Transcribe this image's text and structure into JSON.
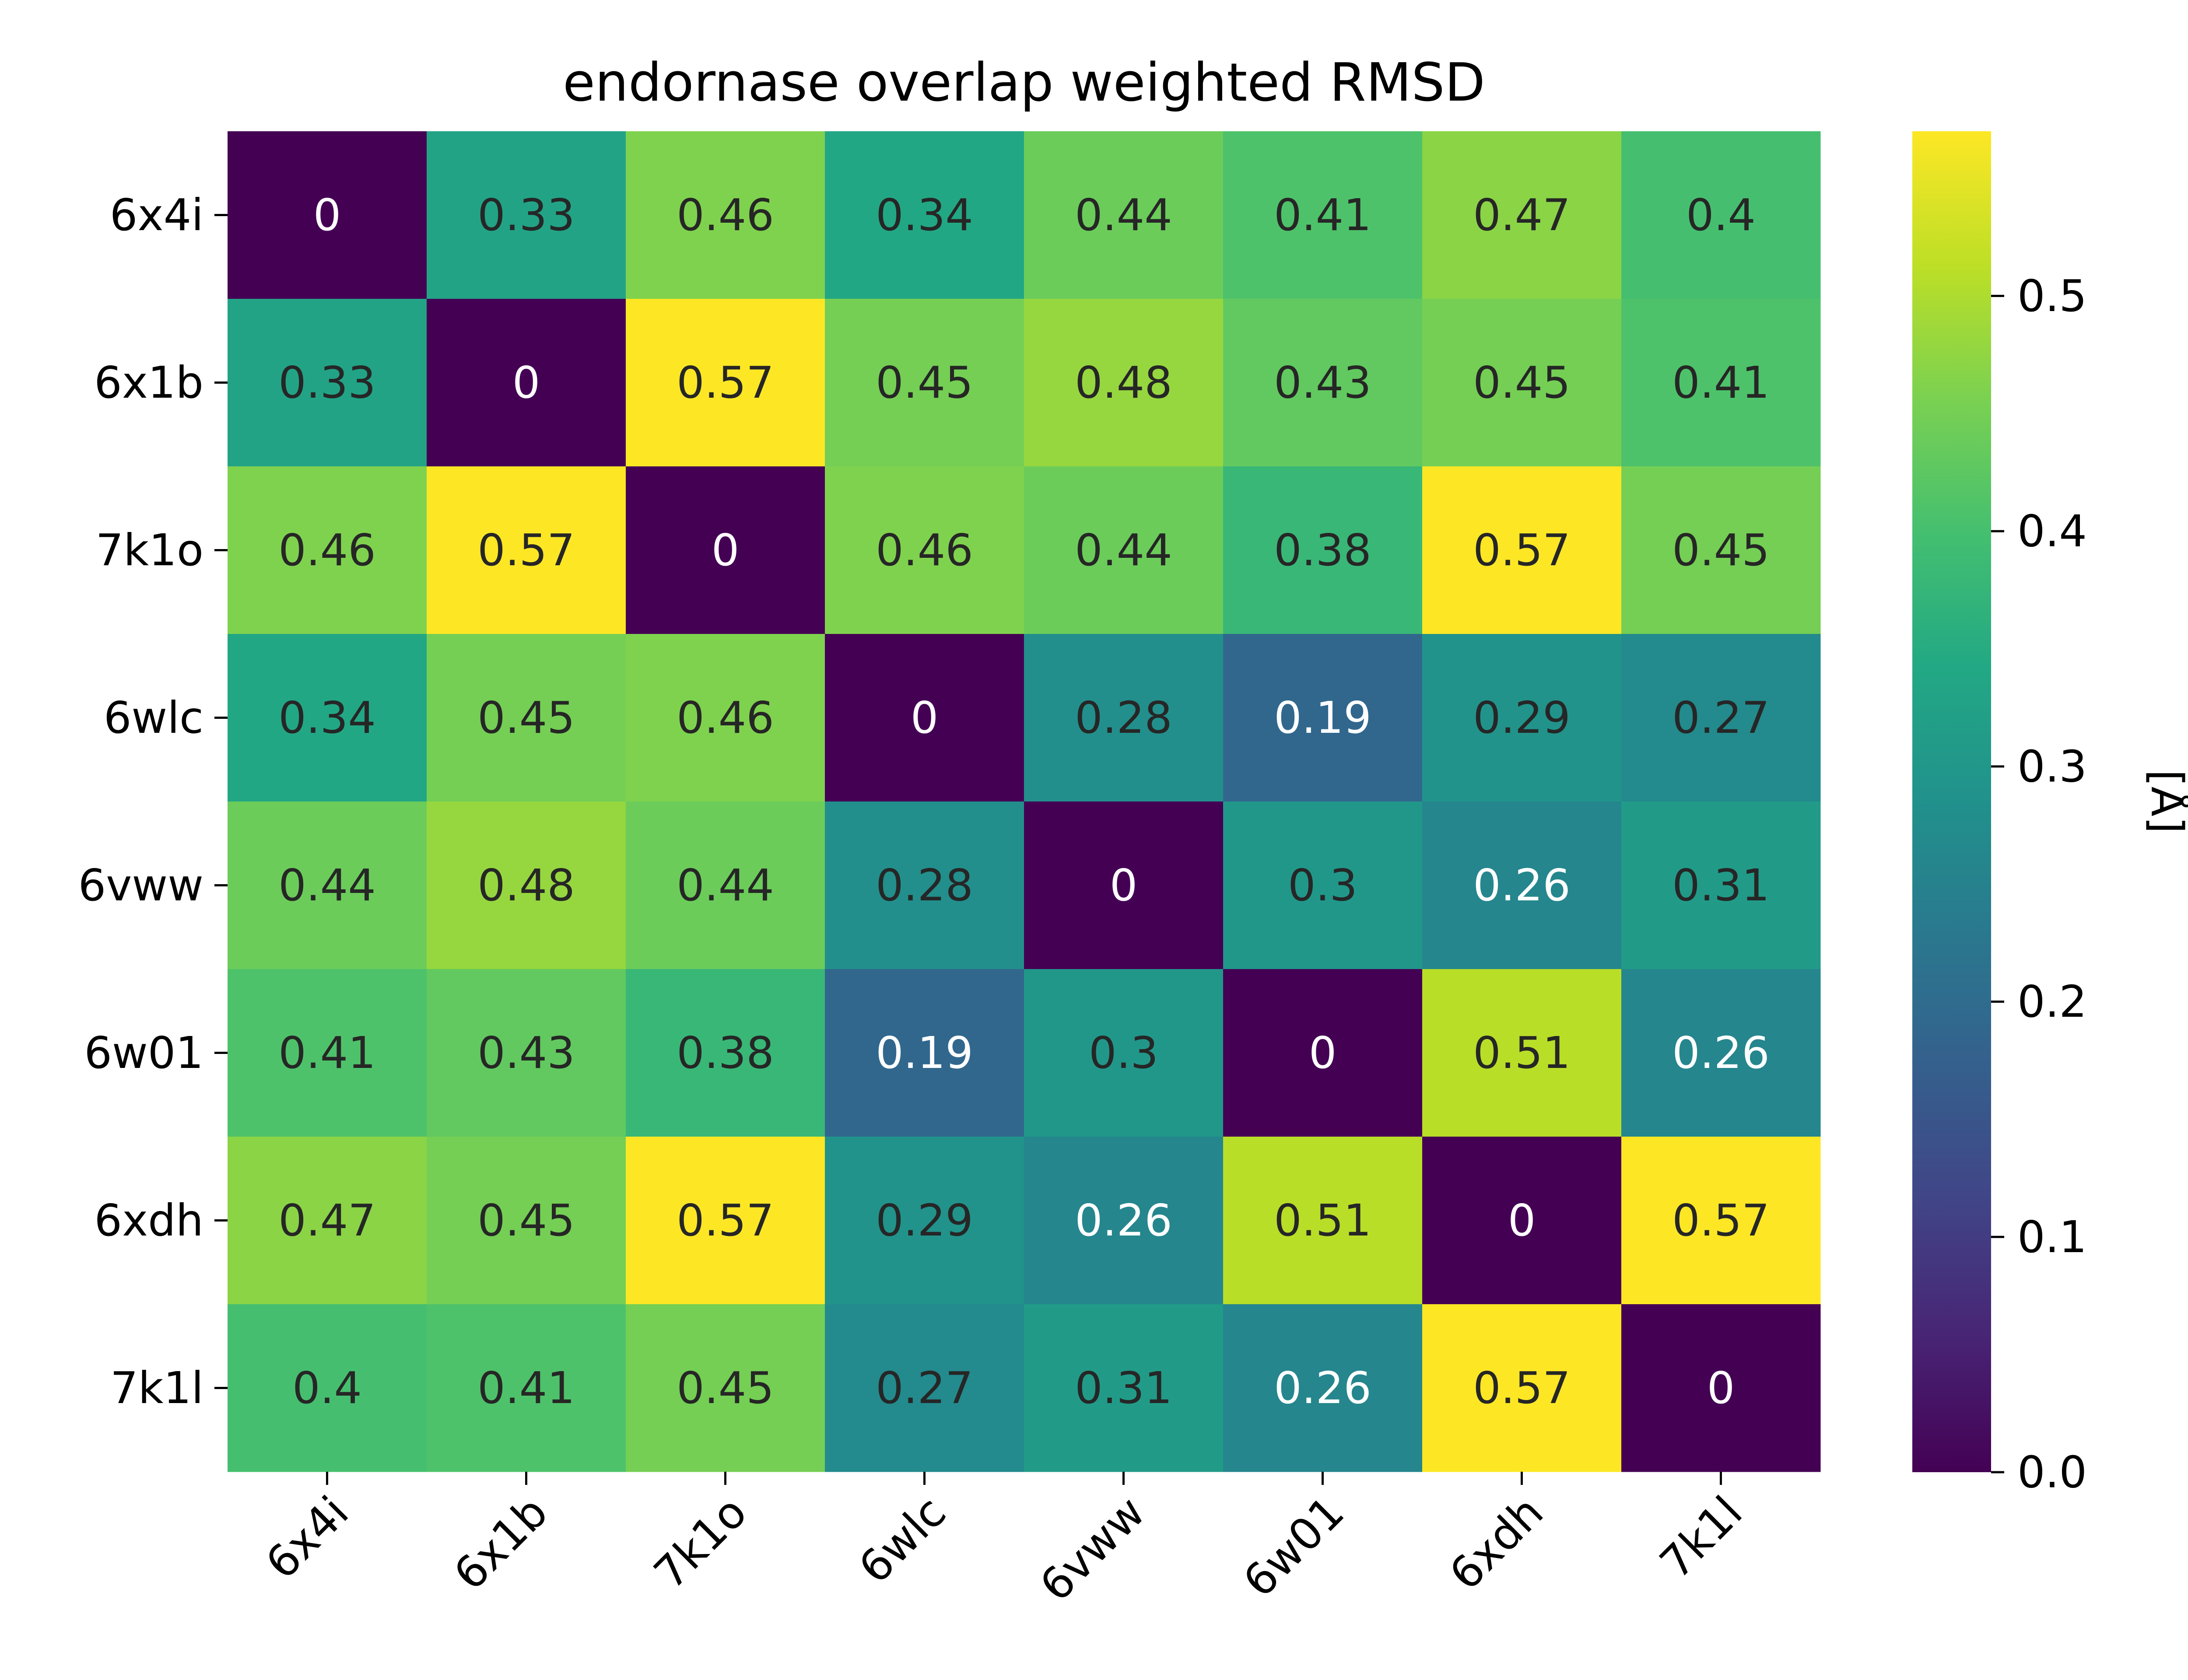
{
  "chart_data": {
    "type": "heatmap",
    "title": "endornase overlap weighted RMSD",
    "x_categories": [
      "6x4i",
      "6x1b",
      "7k1o",
      "6wlc",
      "6vww",
      "6w01",
      "6xdh",
      "7k1l"
    ],
    "y_categories": [
      "6x4i",
      "6x1b",
      "7k1o",
      "6wlc",
      "6vww",
      "6w01",
      "6xdh",
      "7k1l"
    ],
    "values": [
      [
        0,
        0.33,
        0.46,
        0.34,
        0.44,
        0.41,
        0.47,
        0.4
      ],
      [
        0.33,
        0,
        0.57,
        0.45,
        0.48,
        0.43,
        0.45,
        0.41
      ],
      [
        0.46,
        0.57,
        0,
        0.46,
        0.44,
        0.38,
        0.57,
        0.45
      ],
      [
        0.34,
        0.45,
        0.46,
        0,
        0.28,
        0.19,
        0.29,
        0.27
      ],
      [
        0.44,
        0.48,
        0.44,
        0.28,
        0,
        0.3,
        0.26,
        0.31
      ],
      [
        0.41,
        0.43,
        0.38,
        0.19,
        0.3,
        0,
        0.51,
        0.26
      ],
      [
        0.47,
        0.45,
        0.57,
        0.29,
        0.26,
        0.51,
        0,
        0.57
      ],
      [
        0.4,
        0.41,
        0.45,
        0.27,
        0.31,
        0.26,
        0.57,
        0
      ]
    ],
    "value_labels": [
      [
        "0",
        "0.33",
        "0.46",
        "0.34",
        "0.44",
        "0.41",
        "0.47",
        "0.4"
      ],
      [
        "0.33",
        "0",
        "0.57",
        "0.45",
        "0.48",
        "0.43",
        "0.45",
        "0.41"
      ],
      [
        "0.46",
        "0.57",
        "0",
        "0.46",
        "0.44",
        "0.38",
        "0.57",
        "0.45"
      ],
      [
        "0.34",
        "0.45",
        "0.46",
        "0",
        "0.28",
        "0.19",
        "0.29",
        "0.27"
      ],
      [
        "0.44",
        "0.48",
        "0.44",
        "0.28",
        "0",
        "0.3",
        "0.26",
        "0.31"
      ],
      [
        "0.41",
        "0.43",
        "0.38",
        "0.19",
        "0.3",
        "0",
        "0.51",
        "0.26"
      ],
      [
        "0.47",
        "0.45",
        "0.57",
        "0.29",
        "0.26",
        "0.51",
        "0",
        "0.57"
      ],
      [
        "0.4",
        "0.41",
        "0.45",
        "0.27",
        "0.31",
        "0.26",
        "0.57",
        "0"
      ]
    ],
    "colormap": "viridis",
    "vmin": 0.0,
    "vmax": 0.57,
    "colorbar": {
      "label": "[Å]",
      "ticks": [
        0.0,
        0.1,
        0.2,
        0.3,
        0.4,
        0.5
      ],
      "tick_labels": [
        "0.0",
        "0.1",
        "0.2",
        "0.3",
        "0.4",
        "0.5"
      ]
    },
    "x_tick_rotation_deg": 45,
    "grid": false
  }
}
